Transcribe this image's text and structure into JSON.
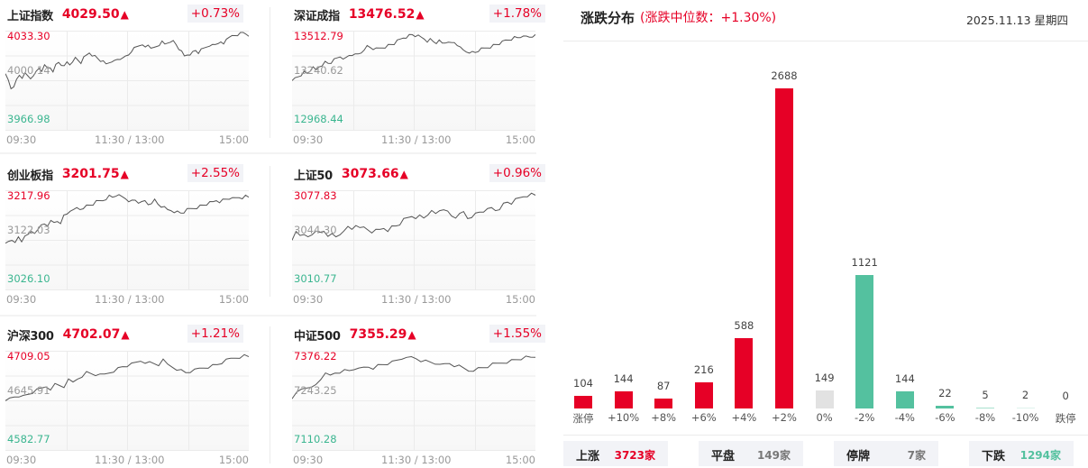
{
  "indices": [
    {
      "name": "上证指数",
      "price": "4029.50",
      "arrow": "▲",
      "change_pct": "+0.73%",
      "high": "4033.30",
      "mid": "4000.14",
      "low": "3966.98",
      "times": [
        "09:30",
        "11:30 / 13:00",
        "15:00"
      ],
      "series": [
        0.55,
        0.5,
        0.42,
        0.45,
        0.5,
        0.55,
        0.53,
        0.56,
        0.54,
        0.52,
        0.56,
        0.58,
        0.62,
        0.6,
        0.64,
        0.62,
        0.63,
        0.6,
        0.65,
        0.68,
        0.66,
        0.63,
        0.68,
        0.66,
        0.7,
        0.72,
        0.7,
        0.68,
        0.72,
        0.75,
        0.78,
        0.76,
        0.74,
        0.72,
        0.7,
        0.68,
        0.66,
        0.68,
        0.7,
        0.69,
        0.71,
        0.72,
        0.71,
        0.74,
        0.76,
        0.8,
        0.82,
        0.84,
        0.86,
        0.84,
        0.83,
        0.86,
        0.84,
        0.82,
        0.84,
        0.86,
        0.88,
        0.86,
        0.88,
        0.9,
        0.89,
        0.86,
        0.82,
        0.78,
        0.74,
        0.76,
        0.77,
        0.78,
        0.8,
        0.78,
        0.8,
        0.82,
        0.84,
        0.86,
        0.85,
        0.86,
        0.88,
        0.87,
        0.86,
        0.92,
        0.95,
        0.94,
        0.95,
        0.96,
        0.97,
        0.98,
        0.97,
        0.96
      ]
    },
    {
      "name": "深证成指",
      "price": "13476.52",
      "arrow": "▲",
      "change_pct": "+1.78%",
      "high": "13512.79",
      "mid": "13240.62",
      "low": "12968.44",
      "times": [
        "09:30",
        "11:30 / 13:00",
        "15:00"
      ],
      "series": [
        0.48,
        0.52,
        0.54,
        0.56,
        0.58,
        0.57,
        0.6,
        0.62,
        0.6,
        0.64,
        0.66,
        0.68,
        0.67,
        0.68,
        0.7,
        0.72,
        0.74,
        0.73,
        0.72,
        0.75,
        0.76,
        0.75,
        0.76,
        0.78,
        0.82,
        0.84,
        0.83,
        0.82,
        0.81,
        0.82,
        0.83,
        0.84,
        0.85,
        0.86,
        0.87,
        0.89,
        0.91,
        0.93,
        0.94,
        0.95,
        0.96,
        0.95,
        0.94,
        0.93,
        0.92,
        0.9,
        0.91,
        0.89,
        0.88,
        0.89,
        0.87,
        0.88,
        0.9,
        0.87,
        0.88,
        0.86,
        0.82,
        0.8,
        0.79,
        0.79,
        0.78,
        0.78,
        0.8,
        0.81,
        0.82,
        0.83,
        0.84,
        0.85,
        0.86,
        0.87,
        0.88,
        0.9,
        0.91,
        0.92,
        0.93,
        0.93,
        0.94,
        0.93,
        0.94,
        0.94,
        0.95,
        0.95
      ]
    },
    {
      "name": "创业板指",
      "price": "3201.75",
      "arrow": "▲",
      "change_pct": "+2.55%",
      "high": "3217.96",
      "mid": "3122.03",
      "low": "3026.10",
      "times": [
        "09:30",
        "11:30 / 13:00",
        "15:00"
      ],
      "series": [
        0.45,
        0.48,
        0.5,
        0.49,
        0.52,
        0.48,
        0.55,
        0.54,
        0.58,
        0.57,
        0.62,
        0.64,
        0.66,
        0.65,
        0.68,
        0.67,
        0.69,
        0.68,
        0.74,
        0.76,
        0.8,
        0.79,
        0.82,
        0.81,
        0.83,
        0.84,
        0.85,
        0.86,
        0.88,
        0.89,
        0.9,
        0.92,
        0.94,
        0.93,
        0.95,
        0.94,
        0.93,
        0.92,
        0.9,
        0.89,
        0.9,
        0.88,
        0.87,
        0.89,
        0.86,
        0.88,
        0.9,
        0.86,
        0.84,
        0.82,
        0.8,
        0.8,
        0.79,
        0.78,
        0.77,
        0.78,
        0.8,
        0.81,
        0.82,
        0.83,
        0.84,
        0.85,
        0.86,
        0.87,
        0.88,
        0.9,
        0.89,
        0.9,
        0.91,
        0.92,
        0.91,
        0.92,
        0.93,
        0.93,
        0.94,
        0.93
      ]
    },
    {
      "name": "上证50",
      "price": "3073.66",
      "arrow": "▲",
      "change_pct": "+0.96%",
      "high": "3077.83",
      "mid": "3044.30",
      "low": "3010.77",
      "times": [
        "09:30",
        "11:30 / 13:00",
        "15:00"
      ],
      "series": [
        0.48,
        0.58,
        0.55,
        0.57,
        0.52,
        0.55,
        0.6,
        0.56,
        0.58,
        0.54,
        0.58,
        0.52,
        0.55,
        0.6,
        0.62,
        0.6,
        0.65,
        0.64,
        0.62,
        0.6,
        0.58,
        0.59,
        0.6,
        0.62,
        0.6,
        0.63,
        0.64,
        0.66,
        0.7,
        0.72,
        0.74,
        0.73,
        0.74,
        0.72,
        0.76,
        0.78,
        0.76,
        0.8,
        0.82,
        0.78,
        0.74,
        0.73,
        0.75,
        0.78,
        0.72,
        0.74,
        0.76,
        0.78,
        0.79,
        0.8,
        0.82,
        0.8,
        0.82,
        0.86,
        0.88,
        0.87,
        0.9,
        0.92,
        0.94,
        0.95,
        0.96,
        0.95
      ]
    },
    {
      "name": "沪深300",
      "price": "4702.07",
      "arrow": "▲",
      "change_pct": "+1.21%",
      "high": "4709.05",
      "mid": "4645.91",
      "low": "4582.77",
      "times": [
        "09:30",
        "11:30 / 13:00",
        "15:00"
      ],
      "series": [
        0.48,
        0.52,
        0.54,
        0.55,
        0.54,
        0.56,
        0.58,
        0.6,
        0.62,
        0.64,
        0.62,
        0.66,
        0.65,
        0.64,
        0.7,
        0.68,
        0.72,
        0.75,
        0.78,
        0.77,
        0.76,
        0.75,
        0.76,
        0.78,
        0.8,
        0.82,
        0.84,
        0.85,
        0.86,
        0.88,
        0.9,
        0.89,
        0.88,
        0.87,
        0.86,
        0.9,
        0.86,
        0.84,
        0.82,
        0.8,
        0.78,
        0.79,
        0.8,
        0.82,
        0.83,
        0.84,
        0.85,
        0.86,
        0.88,
        0.9,
        0.92,
        0.93,
        0.94,
        0.95,
        0.94
      ]
    },
    {
      "name": "中证500",
      "price": "7355.29",
      "arrow": "▲",
      "change_pct": "+1.55%",
      "high": "7376.22",
      "mid": "7243.25",
      "low": "7110.28",
      "times": [
        "09:30",
        "11:30 / 13:00",
        "15:00"
      ],
      "series": [
        0.5,
        0.58,
        0.62,
        0.64,
        0.62,
        0.66,
        0.72,
        0.76,
        0.75,
        0.78,
        0.79,
        0.8,
        0.8,
        0.82,
        0.81,
        0.83,
        0.84,
        0.83,
        0.85,
        0.86,
        0.87,
        0.88,
        0.9,
        0.92,
        0.95,
        0.93,
        0.92,
        0.9,
        0.89,
        0.88,
        0.87,
        0.88,
        0.86,
        0.87,
        0.85,
        0.84,
        0.82,
        0.8,
        0.81,
        0.82,
        0.83,
        0.84,
        0.86,
        0.87,
        0.88,
        0.89,
        0.9,
        0.91,
        0.92,
        0.93,
        0.93,
        0.94
      ]
    }
  ],
  "distribution": {
    "title": "涨跌分布",
    "subtitle": "(涨跌中位数：+1.30%)",
    "date": "2025.11.13 星期四",
    "colors": {
      "up": "#e60026",
      "flat": "#e2e2e2",
      "down": "#54c19f"
    },
    "chart_data": {
      "type": "bar",
      "title": "涨跌分布",
      "categories": [
        "涨停",
        "+10%",
        "+8%",
        "+6%",
        "+4%",
        "+2%",
        "0%",
        "-2%",
        "-4%",
        "-6%",
        "-8%",
        "-10%",
        "跌停"
      ],
      "values": [
        104,
        144,
        87,
        216,
        588,
        2688,
        149,
        1121,
        144,
        22,
        5,
        2,
        0
      ],
      "bar_colors": [
        "up",
        "up",
        "up",
        "up",
        "up",
        "up",
        "flat",
        "down",
        "down",
        "down",
        "down",
        "down",
        "down"
      ],
      "ylim": [
        0,
        2688
      ],
      "grid": false
    },
    "stats": [
      {
        "label": "上涨",
        "value": "3723家",
        "color": "#e60026"
      },
      {
        "label": "平盘",
        "value": "149家",
        "color": "#777777"
      },
      {
        "label": "停牌",
        "value": "7家",
        "color": "#777777"
      },
      {
        "label": "下跌",
        "value": "1294家",
        "color": "#54c19f"
      }
    ]
  }
}
